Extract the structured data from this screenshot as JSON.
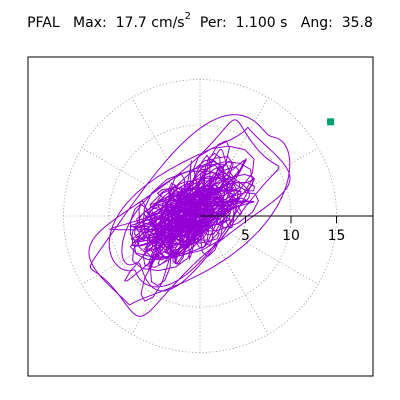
{
  "header": {
    "station": "PFAL",
    "max_label": "Max:",
    "max_value": "17.7 cm/s",
    "max_unit_exp": "2",
    "period_label": "Per:",
    "period_value": "1.100 s",
    "angle_label": "Ang:",
    "angle_value": "35.8"
  },
  "chart_data": {
    "type": "polar-particle-motion",
    "title": "PFAL  Max:  17.7 cm/s2  Per:  1.100 s  Ang:  35.8",
    "max_amplitude": 17.7,
    "amplitude_unit": "cm/s2",
    "period_s": 1.1,
    "angle_deg": 35.8,
    "radial_ticks": [
      5,
      10,
      15
    ],
    "radial_tick_labels": [
      "5",
      "10",
      "15"
    ],
    "rings": [
      5,
      10,
      15
    ],
    "spokes_deg": [
      0,
      30,
      60,
      90,
      120,
      150,
      180,
      210,
      240,
      270,
      300,
      330
    ],
    "grid": "dotted",
    "trace_color": "#9400d3",
    "marker_color": "#00a070",
    "marker_point": [
      14.35,
      10.35
    ],
    "radius_limit": 17.7
  }
}
